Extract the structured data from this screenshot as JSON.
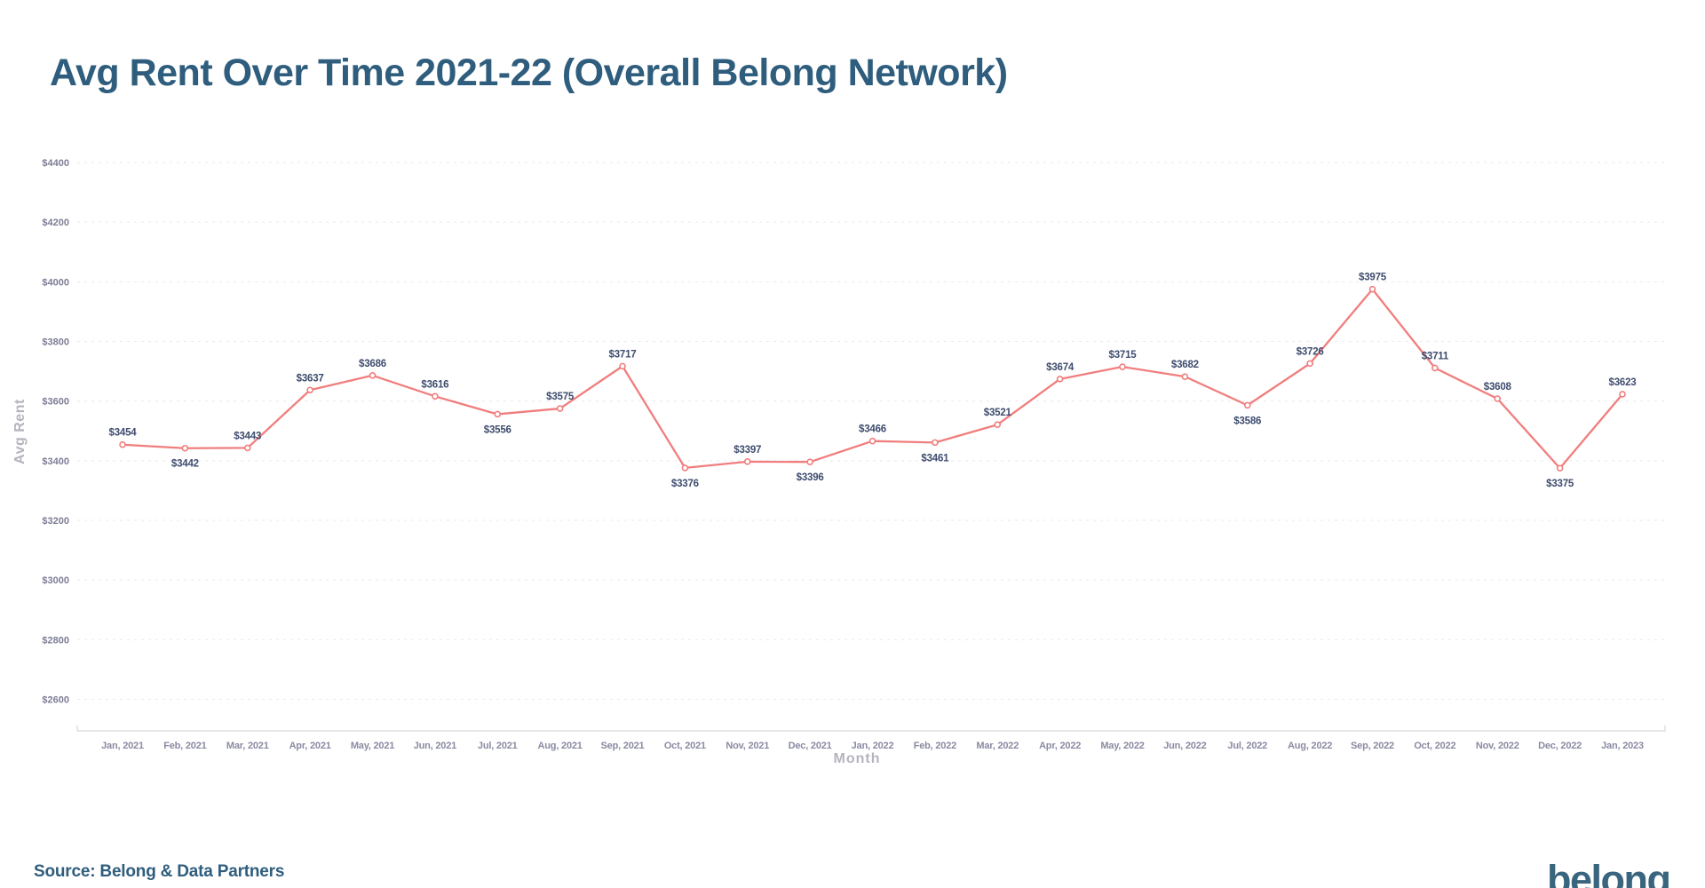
{
  "page": {
    "title": "Avg Rent Over Time 2021-22 (Overall Belong Network)",
    "source": "Source: Belong & Data Partners",
    "logo_text": "belong"
  },
  "chart_data": {
    "type": "line",
    "title": "Avg Rent Over Time 2021-22 (Overall Belong Network)",
    "xlabel": "Month",
    "ylabel": "Avg Rent",
    "ylim": [
      2600,
      4400
    ],
    "y_tick_step": 200,
    "y_tick_labels": [
      "$4400",
      "$4200",
      "$4000",
      "$3800",
      "$3600",
      "$3400",
      "$3200",
      "$3000",
      "$2800",
      "$2600"
    ],
    "categories": [
      "Jan, 2021",
      "Feb, 2021",
      "Mar, 2021",
      "Apr, 2021",
      "May, 2021",
      "Jun, 2021",
      "Jul, 2021",
      "Aug, 2021",
      "Sep, 2021",
      "Oct, 2021",
      "Nov, 2021",
      "Dec, 2021",
      "Jan, 2022",
      "Feb, 2022",
      "Mar, 2022",
      "Apr, 2022",
      "May, 2022",
      "Jun, 2022",
      "Jul, 2022",
      "Aug, 2022",
      "Sep, 2022",
      "Oct, 2022",
      "Nov, 2022",
      "Dec, 2022",
      "Jan, 2023"
    ],
    "series": [
      {
        "name": "Avg Rent",
        "values": [
          3454,
          3442,
          3443,
          3637,
          3686,
          3616,
          3556,
          3575,
          3717,
          3376,
          3397,
          3396,
          3466,
          3461,
          3521,
          3674,
          3715,
          3682,
          3586,
          3726,
          3975,
          3711,
          3608,
          3375,
          3623
        ],
        "data_labels": [
          "$3454",
          "$3442",
          "$3443",
          "$3637",
          "$3686",
          "$3616",
          "$3556",
          "$3575",
          "$3717",
          "$3376",
          "$3397",
          "$3396",
          "$3466",
          "$3461",
          "$3521",
          "$3674",
          "$3715",
          "$3682",
          "$3586",
          "$3726",
          "$3975",
          "$3711",
          "$3608",
          "$3375",
          "$3623"
        ],
        "data_label_positions": [
          "above",
          "below",
          "above",
          "above",
          "above",
          "above",
          "below",
          "above",
          "above",
          "below",
          "above",
          "below",
          "above",
          "below",
          "above",
          "above",
          "above",
          "above",
          "below",
          "above",
          "above",
          "above",
          "above",
          "below",
          "above"
        ]
      }
    ],
    "grid": "horizontal-dashed",
    "legend": "none",
    "colors": {
      "title": "#2e5d7d",
      "line": "#f17e7e",
      "marker_fill": "#ffffff",
      "data_label": "#3e4c6e",
      "x_tick_label": "#8a8aa2",
      "y_tick_label": "#7c7c96",
      "axis_title": "#b4b4bf",
      "grid_line": "#e9e9f1",
      "axis_line": "#d5d5de"
    }
  }
}
